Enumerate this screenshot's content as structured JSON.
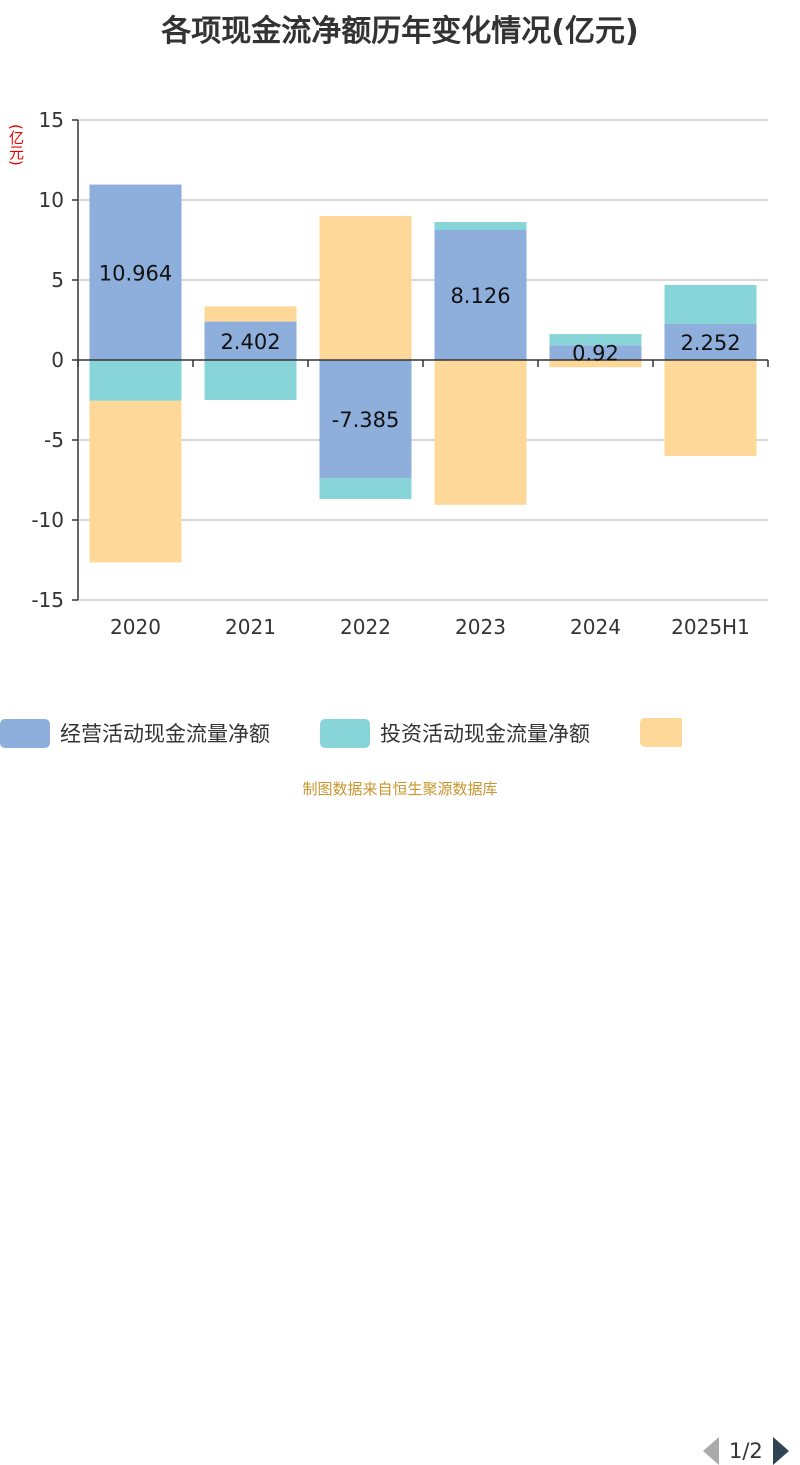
{
  "chart_data": {
    "type": "bar",
    "stacked": true,
    "title": "各项现金流净额历年变化情况(亿元)",
    "ylabel": "(亿元)",
    "categories": [
      "2020",
      "2021",
      "2022",
      "2023",
      "2024",
      "2025H1"
    ],
    "ylim": [
      -15,
      15
    ],
    "yticks": [
      15,
      10,
      5,
      0,
      -5,
      -10,
      -15
    ],
    "grid": true,
    "legend_position": "bottom",
    "series": [
      {
        "name": "经营活动现金流量净额",
        "color": "#8eaedb",
        "values": [
          10.964,
          2.402,
          -7.385,
          8.126,
          0.92,
          2.252
        ],
        "labels": [
          "10.964",
          "2.402",
          "-7.385",
          "8.126",
          "0.92",
          "2.252"
        ]
      },
      {
        "name": "投资活动现金流量净额",
        "color": "#87d5d8",
        "values": [
          -2.55,
          -2.5,
          -1.3,
          0.5,
          0.7,
          2.44
        ]
      },
      {
        "color": "#fed899",
        "values": [
          -10.1,
          0.95,
          9.0,
          -9.05,
          -0.45,
          -6.0
        ]
      }
    ]
  },
  "legend": {
    "page": "1/2"
  },
  "source": "制图数据来自恒生聚源数据库"
}
